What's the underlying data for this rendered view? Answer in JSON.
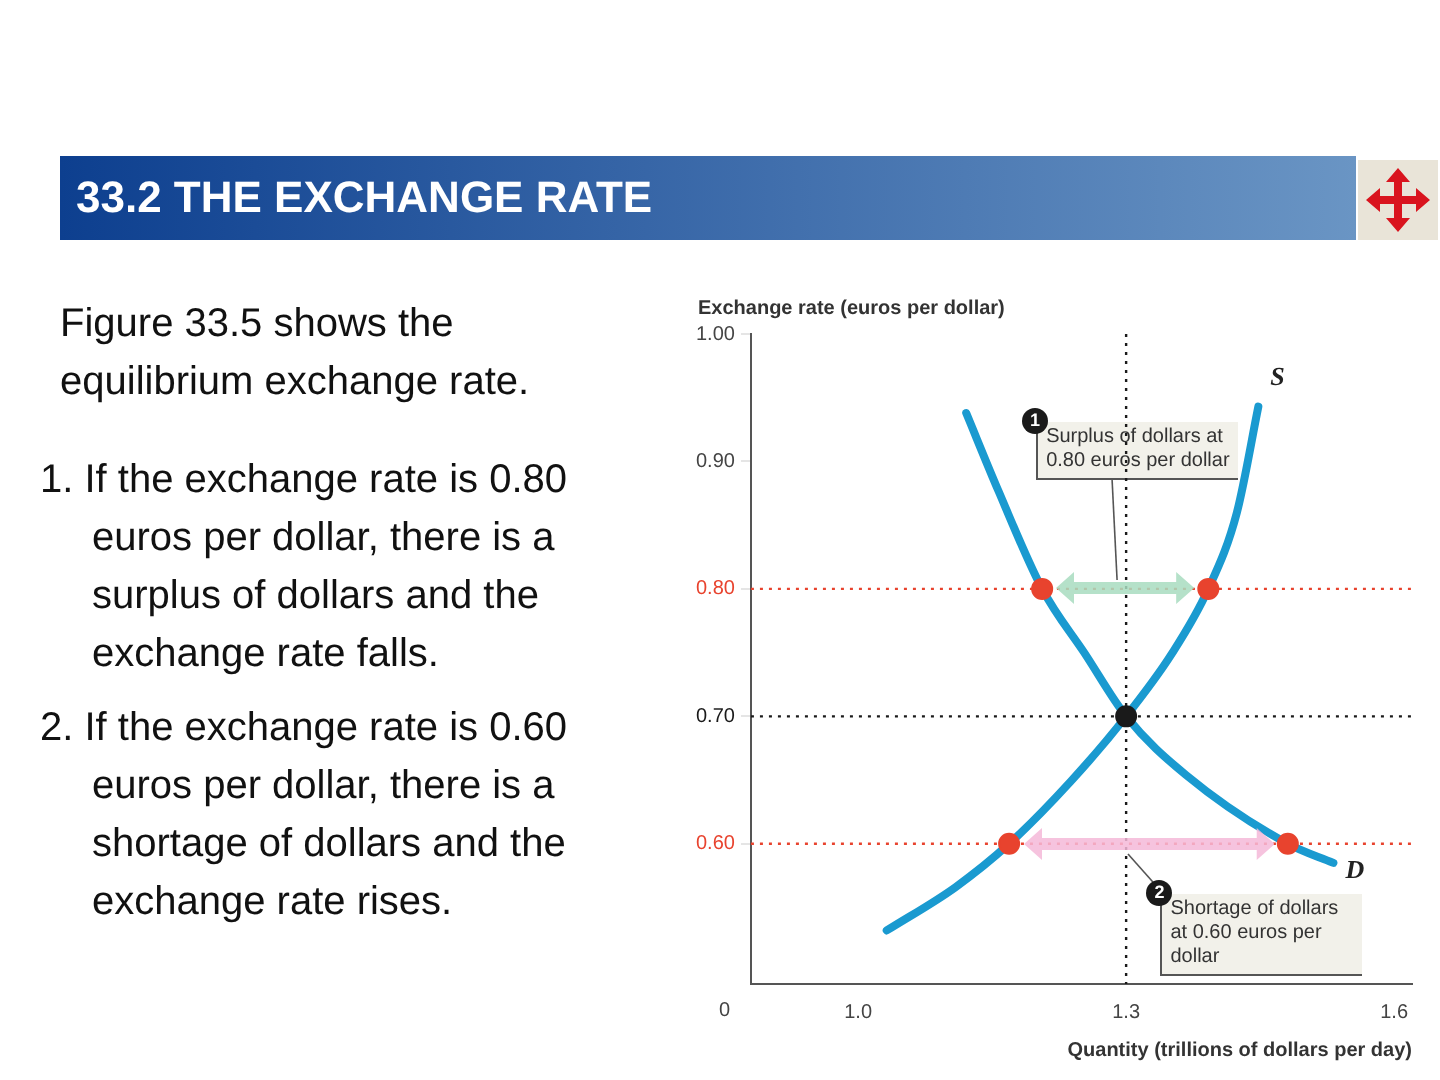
{
  "chart_data": {
    "type": "line",
    "title": "33.2  THE EXCHANGE RATE",
    "xlabel": "Quantity (trillions of dollars per day)",
    "ylabel": "Exchange rate (euros per dollar)",
    "annotations": [
      "Figure 33.5 shows the equilibrium exchange rate.",
      "1. If the exchange rate is 0.80 euros per dollar, there is a surplus of dollars and the exchange rate falls.",
      "2. If the exchange rate is 0.60 euros per dollar, there is a shortage of dollars and the exchange rate rises.",
      "1",
      "Surplus of dollars at 0.80 euros per dollar",
      "2",
      "Shortage of dollars at 0.60 euros per dollar",
      "0"
    ],
    "series": [
      {
        "name": "D",
        "color": "#1a9ad0",
        "x": [
          1.121,
          1.157,
          1.206,
          1.254,
          1.3,
          1.367,
          1.481,
          1.532
        ],
        "values": [
          0.938,
          0.877,
          0.8,
          0.749,
          0.7,
          0.654,
          0.6,
          0.585
        ]
      },
      {
        "name": "S",
        "color": "#1a9ad0",
        "x": [
          1.032,
          1.109,
          1.169,
          1.238,
          1.3,
          1.351,
          1.392,
          1.424,
          1.448
        ],
        "values": [
          0.532,
          0.566,
          0.6,
          0.649,
          0.7,
          0.749,
          0.8,
          0.86,
          0.943
        ]
      },
      {
        "type": "scatter",
        "color": "#e8432e",
        "x": [
          1.206,
          1.392,
          1.169,
          1.481
        ],
        "values": [
          0.8,
          0.8,
          0.6,
          0.6
        ]
      },
      {
        "type": "scatter",
        "color": "#1a1a1a",
        "x": [
          1.3
        ],
        "values": [
          0.7
        ]
      }
    ],
    "xlim": [
      0.88,
      1.62
    ],
    "xticks": [
      {
        "value": 1.0,
        "label": "1.0"
      },
      1.3,
      1.6
    ],
    "ylim": [
      0.49,
      1.0
    ],
    "yticks": [
      {
        "value": 0.6,
        "label": "0.60"
      },
      {
        "value": 0.7,
        "label": "0.70"
      },
      {
        "value": 0.8,
        "label": "0.80"
      },
      {
        "value": 0.9,
        "label": "0.90"
      },
      {
        "value": 1.0,
        "label": "1.00"
      }
    ],
    "ref_lines": [
      {
        "axis": "y",
        "value": 0.8,
        "color": "#e8432e",
        "line_style": "dotted"
      },
      {
        "axis": "y",
        "value": 0.7,
        "color": "#1a1a1a",
        "line_style": "dotted"
      },
      {
        "axis": "y",
        "value": 0.6,
        "color": "#e8432e",
        "line_style": "dotted"
      },
      {
        "axis": "x",
        "value": 1.3,
        "color": "#1a1a1a",
        "line_style": "dotted"
      }
    ],
    "grid": false,
    "legend": false
  }
}
